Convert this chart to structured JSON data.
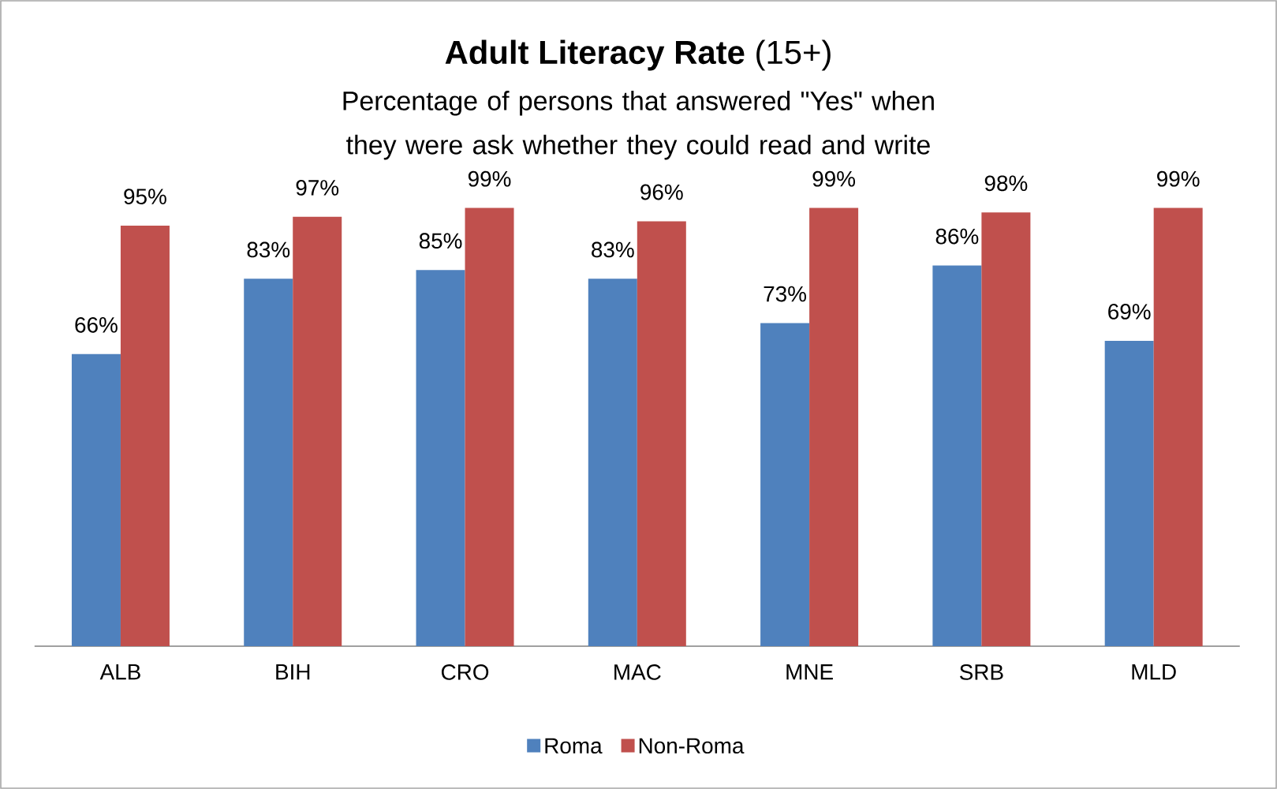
{
  "chart_data": {
    "type": "bar",
    "title": "**Adult Literacy Rate** (15+)",
    "subtitle": "Percentage of persons that answered \"Yes\" when they were ask whether they could read and write",
    "categories": [
      "ALB",
      "BIH",
      "CRO",
      "MAC",
      "MNE",
      "SRB",
      "MLD"
    ],
    "series": [
      {
        "name": "Roma",
        "color": "#4f81bd",
        "values": [
          66,
          83,
          85,
          83,
          73,
          86,
          69
        ],
        "value_labels": [
          "66%",
          "83%",
          "85%",
          "83%",
          "73%",
          "86%",
          "69%"
        ]
      },
      {
        "name": "Non-Roma",
        "color": "#c0504d",
        "values": [
          95,
          97,
          99,
          96,
          99,
          98,
          99
        ],
        "value_labels": [
          "95%",
          "97%",
          "99%",
          "96%",
          "99%",
          "98%",
          "99%"
        ]
      }
    ],
    "legend": "bottom"
  }
}
